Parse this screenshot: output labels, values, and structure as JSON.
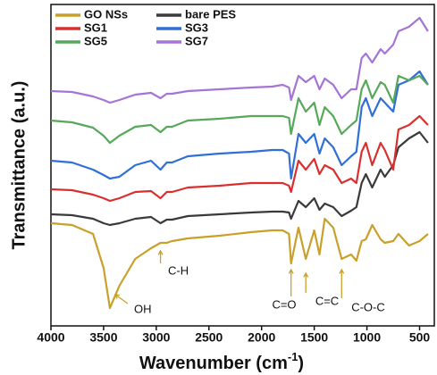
{
  "chart_data": {
    "type": "line",
    "ylabel": "Transmittance (a.u.)",
    "xlabel": {
      "text": "Wavenumber (cm",
      "sup": "-1",
      "tail": ")"
    },
    "x": [
      4000,
      3800,
      3600,
      3500,
      3440,
      3350,
      3200,
      3050,
      2960,
      2900,
      2850,
      2700,
      2400,
      2100,
      1900,
      1800,
      1740,
      1720,
      1650,
      1580,
      1500,
      1450,
      1400,
      1320,
      1240,
      1150,
      1100,
      1050,
      1010,
      950,
      870,
      830,
      750,
      700,
      600,
      500,
      420
    ],
    "xlim": [
      4000,
      360
    ],
    "xticks": [
      4000,
      3500,
      3000,
      2500,
      2000,
      1500,
      1000,
      500
    ],
    "ylim": [
      0,
      360
    ],
    "series": [
      {
        "name": "GO NSs",
        "color": "#c8a02a",
        "values": [
          115,
          113,
          103,
          65,
          20,
          45,
          75,
          87,
          93,
          93,
          95,
          98,
          101,
          105,
          107,
          107,
          103,
          70,
          110,
          75,
          107,
          80,
          120,
          110,
          75,
          80,
          73,
          95,
          97,
          113,
          97,
          93,
          95,
          103,
          90,
          95,
          103
        ]
      },
      {
        "name": "bare PES",
        "color": "#3a3a3a",
        "values": [
          125,
          124,
          120,
          115,
          113,
          115,
          120,
          122,
          115,
          119,
          119,
          123,
          125,
          127,
          128,
          128,
          127,
          120,
          140,
          133,
          143,
          130,
          137,
          133,
          123,
          129,
          133,
          160,
          170,
          155,
          175,
          167,
          180,
          200,
          210,
          217,
          205
        ]
      },
      {
        "name": "SG1",
        "color": "#d9302f",
        "values": [
          153,
          152,
          147,
          143,
          140,
          143,
          150,
          151,
          143,
          150,
          150,
          155,
          157,
          160,
          160,
          160,
          157,
          150,
          185,
          175,
          187,
          170,
          180,
          175,
          160,
          165,
          160,
          195,
          205,
          180,
          205,
          197,
          175,
          220,
          225,
          235,
          225
        ]
      },
      {
        "name": "SG3",
        "color": "#2f6fd6",
        "values": [
          185,
          183,
          175,
          169,
          165,
          167,
          180,
          185,
          175,
          183,
          183,
          190,
          193,
          195,
          197,
          197,
          193,
          165,
          215,
          205,
          215,
          193,
          210,
          200,
          180,
          190,
          195,
          245,
          255,
          235,
          255,
          250,
          240,
          270,
          275,
          285,
          270
        ]
      },
      {
        "name": "SG5",
        "color": "#56a85a",
        "values": [
          230,
          228,
          222,
          213,
          205,
          213,
          223,
          225,
          217,
          223,
          223,
          230,
          232,
          235,
          235,
          235,
          233,
          215,
          255,
          240,
          250,
          225,
          245,
          235,
          215,
          225,
          230,
          265,
          275,
          255,
          273,
          270,
          250,
          280,
          275,
          280,
          270
        ]
      },
      {
        "name": "SG7",
        "color": "#a474d6",
        "values": [
          263,
          262,
          257,
          253,
          250,
          253,
          259,
          261,
          255,
          260,
          260,
          263,
          265,
          267,
          268,
          270,
          267,
          253,
          280,
          273,
          280,
          265,
          277,
          270,
          255,
          265,
          265,
          300,
          305,
          295,
          310,
          305,
          315,
          330,
          335,
          345,
          330
        ]
      }
    ],
    "annotations": [
      {
        "text": "OH",
        "x": 3440
      },
      {
        "text": "C-H",
        "x": 2960
      },
      {
        "text": "C=O",
        "x": 1720
      },
      {
        "text": "C=C",
        "x": 1580
      },
      {
        "text": "C-O-C",
        "x": 1240
      }
    ]
  }
}
